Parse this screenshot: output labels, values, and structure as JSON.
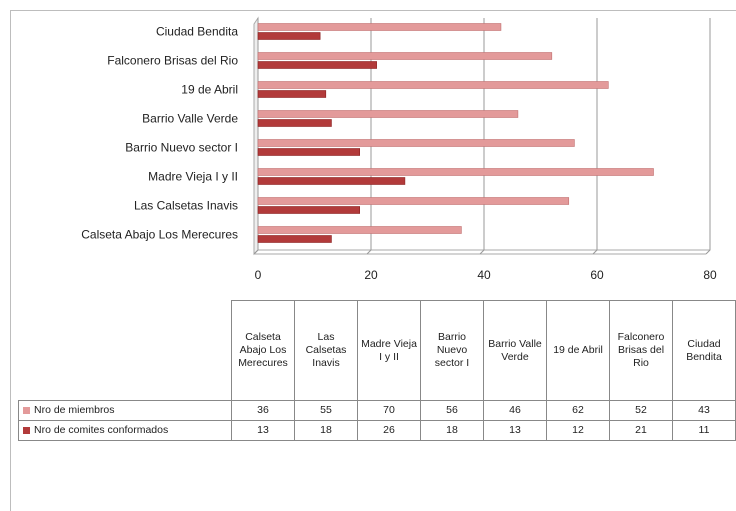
{
  "chart_data": {
    "type": "bar",
    "orientation": "horizontal",
    "categories": [
      "Calseta Abajo Los Merecures",
      "Las Calsetas Inavis",
      "Madre Vieja I y II",
      "Barrio Nuevo sector I",
      "Barrio Valle Verde",
      "19 de Abril",
      "Falconero Brisas del Rio",
      "Ciudad Bendita"
    ],
    "series": [
      {
        "name": "Nro de miembros",
        "color": "#e39a9a",
        "values": [
          36,
          55,
          70,
          56,
          46,
          62,
          52,
          43
        ]
      },
      {
        "name": "Nro de comites conformados",
        "color": "#b23a3a",
        "values": [
          13,
          18,
          26,
          18,
          13,
          12,
          21,
          11
        ]
      }
    ],
    "xlim": [
      0,
      80
    ],
    "xticks": [
      0,
      20,
      40,
      60,
      80
    ],
    "grid": true,
    "data_table": true
  }
}
